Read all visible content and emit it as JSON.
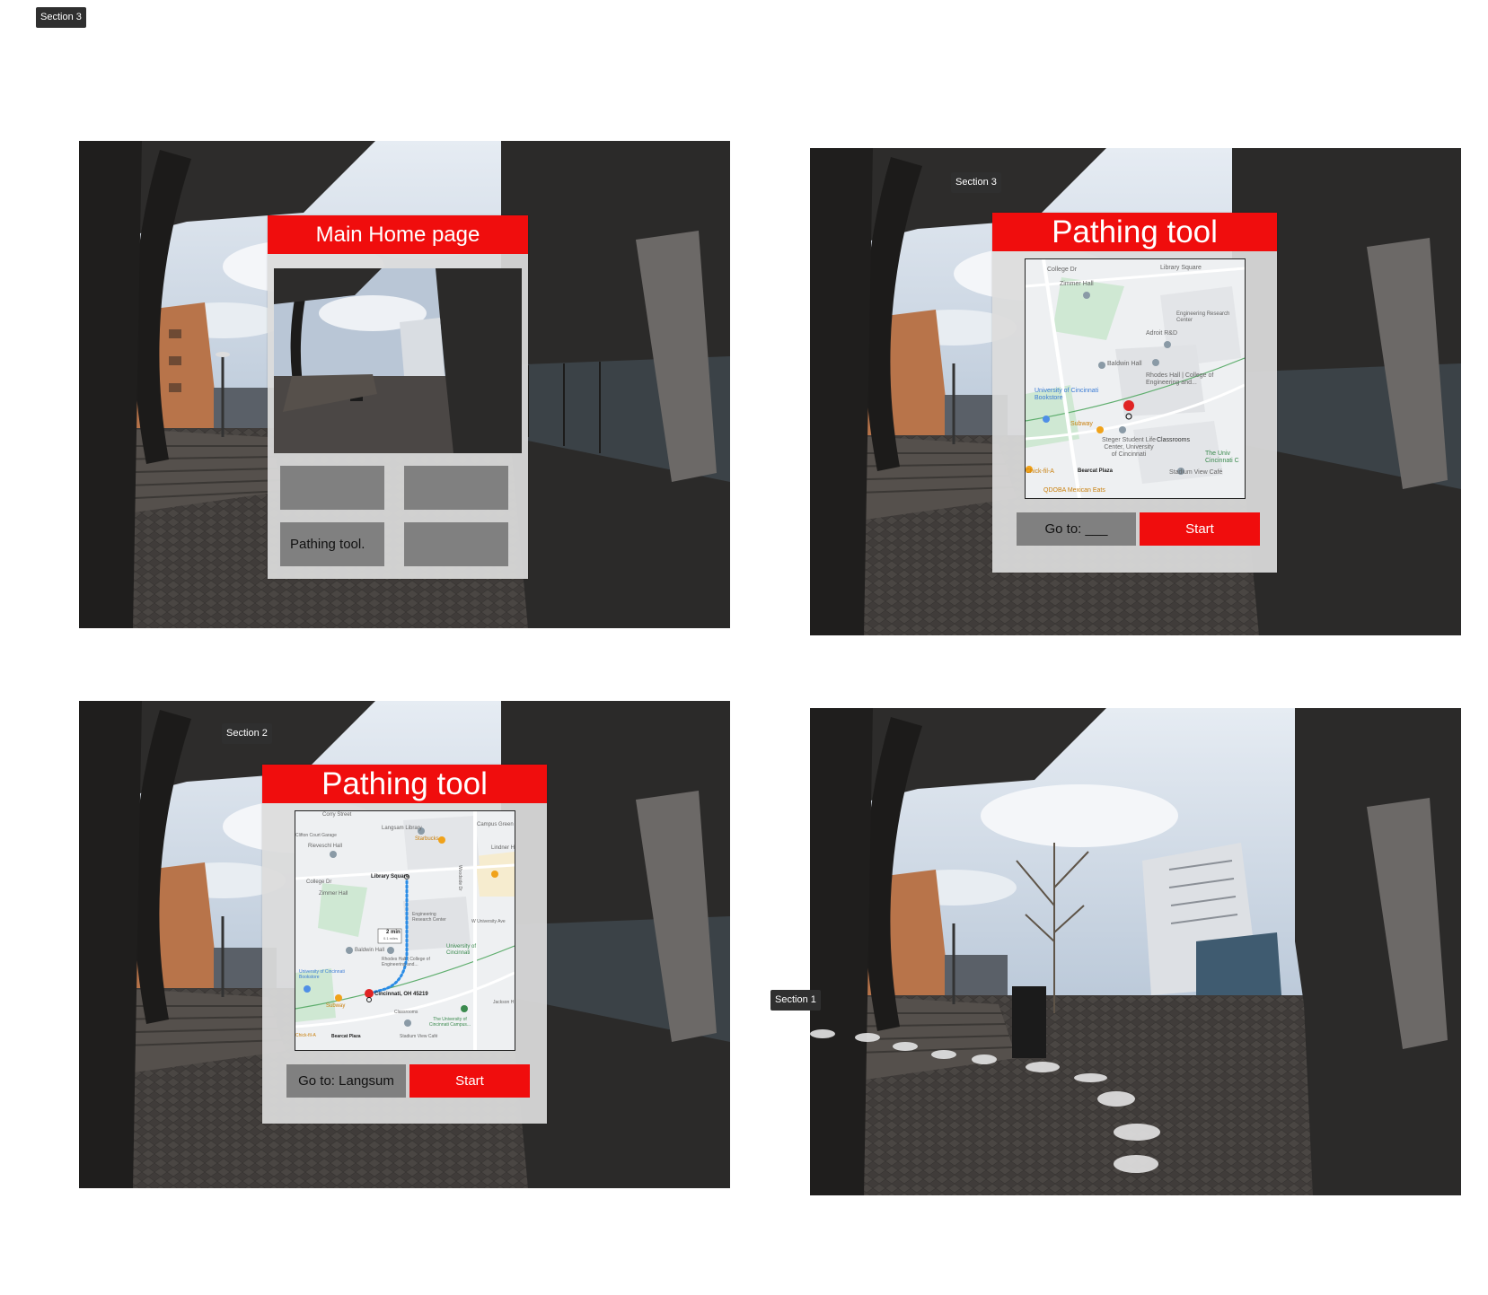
{
  "section_tags": {
    "top_left": "Section 3",
    "frame2": "Section 3",
    "frame3": "Section 2",
    "frame4": "Section 1"
  },
  "home_panel": {
    "title": "Main Home page",
    "pathing_tile_label": "Pathing tool."
  },
  "pathing_panel_a": {
    "title": "Pathing tool",
    "goto_label": "Go to: ___",
    "start_label": "Start",
    "map_labels": {
      "college_dr": "College Dr",
      "library_square": "Library Square",
      "zimmer_hall": "Zimmer Hall",
      "engineering_center": "Engineering Research Center",
      "adroit": "Adroit R&D",
      "baldwin": "Baldwin Hall",
      "rhodes": "Rhodes Hall | College of Engineering and...",
      "bookstore": "University of Cincinnati Bookstore",
      "subway": "Subway",
      "steger": "Steger Student Life Center, University of Cincinnati",
      "classrooms": "Classrooms",
      "chickfila": "Chick-fil-A",
      "bearcat": "Bearcat Plaza",
      "stadium_view": "Stadium View Café",
      "univ_cin": "The Univ Cincinnati C",
      "qdoba": "QDOBA Mexican Eats"
    }
  },
  "pathing_panel_b": {
    "title": "Pathing tool",
    "goto_label": "Go to: Langsum",
    "start_label": "Start",
    "map_labels": {
      "langsam": "Langsam Library",
      "starbucks": "Starbucks",
      "library_square": "Library Square",
      "engineering_center": "Engineering Research Center",
      "baldwin": "Baldwin Hall",
      "rhodes": "Rhodes Hall | College of Engineering and...",
      "univ_cin": "University of Cincinnati",
      "bookstore": "University of Cincinnati Bookstore",
      "address": "Cincinnati, OH 45219",
      "route_time": "2 min",
      "route_dist": "0.1 miles",
      "classrooms": "Classrooms",
      "bearcat": "Bearcat Plaza",
      "stadium_view": "Stadium View Café",
      "univ_campus": "The University of Cincinnati Campus...",
      "subway": "Subway",
      "zimmer_hall": "Zimmer Hall",
      "college_dr": "College Dr",
      "reiveschl": "Rieveschl Hall",
      "w_univ": "W University Ave",
      "jackson": "Jackson H",
      "lindner": "Lindner H",
      "corry": "Corry Street",
      "campus_green": "Campus Green",
      "garage": "Clifton Court Garage",
      "woodside": "Woodside Dr",
      "chickfila": "Chick-fil-A"
    }
  },
  "colors": {
    "header_red": "#f00d0d",
    "panel_gray": "#dcdcdc",
    "tile_gray": "#808080",
    "tag_bg": "#2f2f2f"
  }
}
